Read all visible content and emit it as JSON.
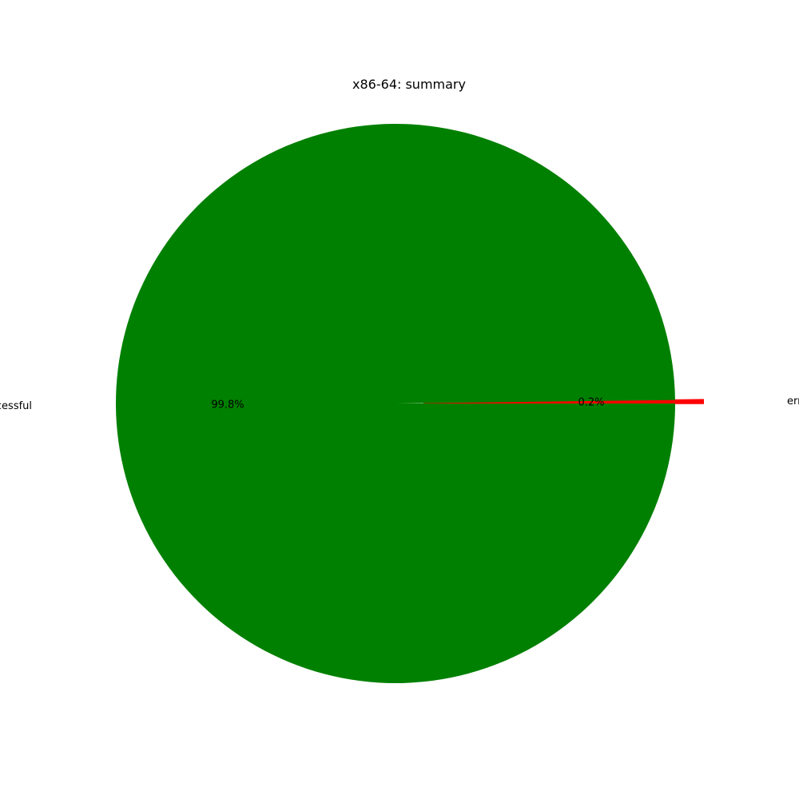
{
  "chart_data": {
    "type": "pie",
    "title": "x86-64: summary",
    "slices": [
      {
        "label": "errors",
        "value": 0.2,
        "percent_label": "0.2%",
        "color": "#ff0000",
        "exploded": true
      },
      {
        "label": "successful",
        "value": 99.8,
        "percent_label": "99.8%",
        "color": "#008000",
        "exploded": false
      }
    ],
    "legend": "none"
  }
}
